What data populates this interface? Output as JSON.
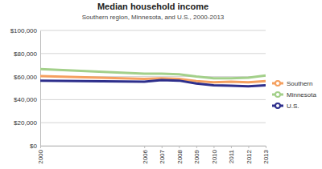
{
  "chart_data": {
    "type": "line",
    "title": "Median household income",
    "subtitle": "Southern region, Minnesota, and U.S., 2000-2013",
    "x": [
      2000,
      2006,
      2007,
      2008,
      2009,
      2010,
      2011,
      2012,
      2013
    ],
    "xlim": [
      2000,
      2013
    ],
    "xticks": [
      2000,
      2006,
      2007,
      2008,
      2009,
      2010,
      2011,
      2012,
      2013
    ],
    "ylim": [
      0,
      100000
    ],
    "yticks": [
      {
        "value": 0,
        "label": "$0"
      },
      {
        "value": 20000,
        "label": "$20,000"
      },
      {
        "value": 40000,
        "label": "$40,000"
      },
      {
        "value": 60000,
        "label": "$60,000"
      },
      {
        "value": 80000,
        "label": "$80,000"
      },
      {
        "value": 100000,
        "label": "$100,000"
      }
    ],
    "grid": true,
    "legend": "right",
    "series": [
      {
        "name": "Southern",
        "color": "#f5a05f",
        "values": [
          60500,
          58000,
          58500,
          58000,
          56000,
          55000,
          55500,
          55000,
          56000
        ]
      },
      {
        "name": "Minnesota",
        "color": "#a3d08a",
        "values": [
          66500,
          62500,
          62500,
          62000,
          60000,
          58500,
          58500,
          59000,
          61000
        ]
      },
      {
        "name": "U.S.",
        "color": "#2e2f8c",
        "values": [
          56500,
          55500,
          57000,
          56500,
          54000,
          52500,
          52000,
          51500,
          52500
        ]
      }
    ]
  }
}
